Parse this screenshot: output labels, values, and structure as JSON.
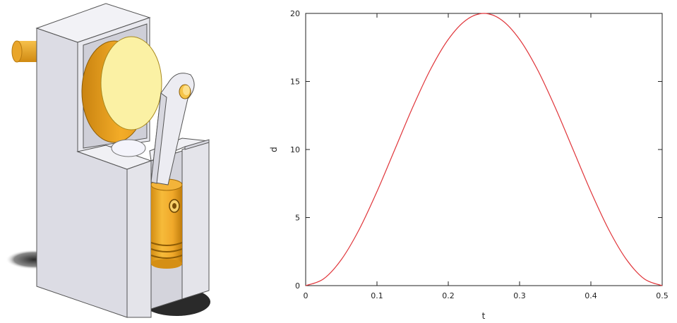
{
  "figure": {
    "left_panel": "crank-piston-mechanism-3d-illustration",
    "colors": {
      "block": "#e6e6ec",
      "block_dark": "#c9c9d3",
      "gold": "#f0ac22",
      "gold_dark": "#c98a10",
      "disc_face": "#fbf1a4",
      "rod": "#ececf2",
      "shadow": "#2e2e2e"
    }
  },
  "chart_data": {
    "type": "line",
    "xlabel": "t",
    "ylabel": "d",
    "xlim": [
      0,
      0.5
    ],
    "ylim": [
      0,
      20
    ],
    "x_ticks": [
      "0",
      "0.1",
      "0.2",
      "0.3",
      "0.4",
      "0.5"
    ],
    "y_ticks": [
      "0",
      "5",
      "10",
      "15",
      "20"
    ],
    "grid": false,
    "series": [
      {
        "color": "#e0353a",
        "x": [
          0,
          0.025,
          0.05,
          0.075,
          0.1,
          0.125,
          0.15,
          0.175,
          0.2,
          0.225,
          0.25,
          0.275,
          0.3,
          0.325,
          0.35,
          0.375,
          0.4,
          0.425,
          0.45,
          0.475,
          0.5
        ],
        "y": [
          0,
          0.49,
          1.91,
          4.12,
          6.91,
          10.0,
          13.09,
          15.88,
          18.09,
          19.51,
          20.0,
          19.51,
          18.09,
          15.88,
          13.09,
          10.0,
          6.91,
          4.12,
          1.91,
          0.49,
          0
        ]
      }
    ]
  }
}
